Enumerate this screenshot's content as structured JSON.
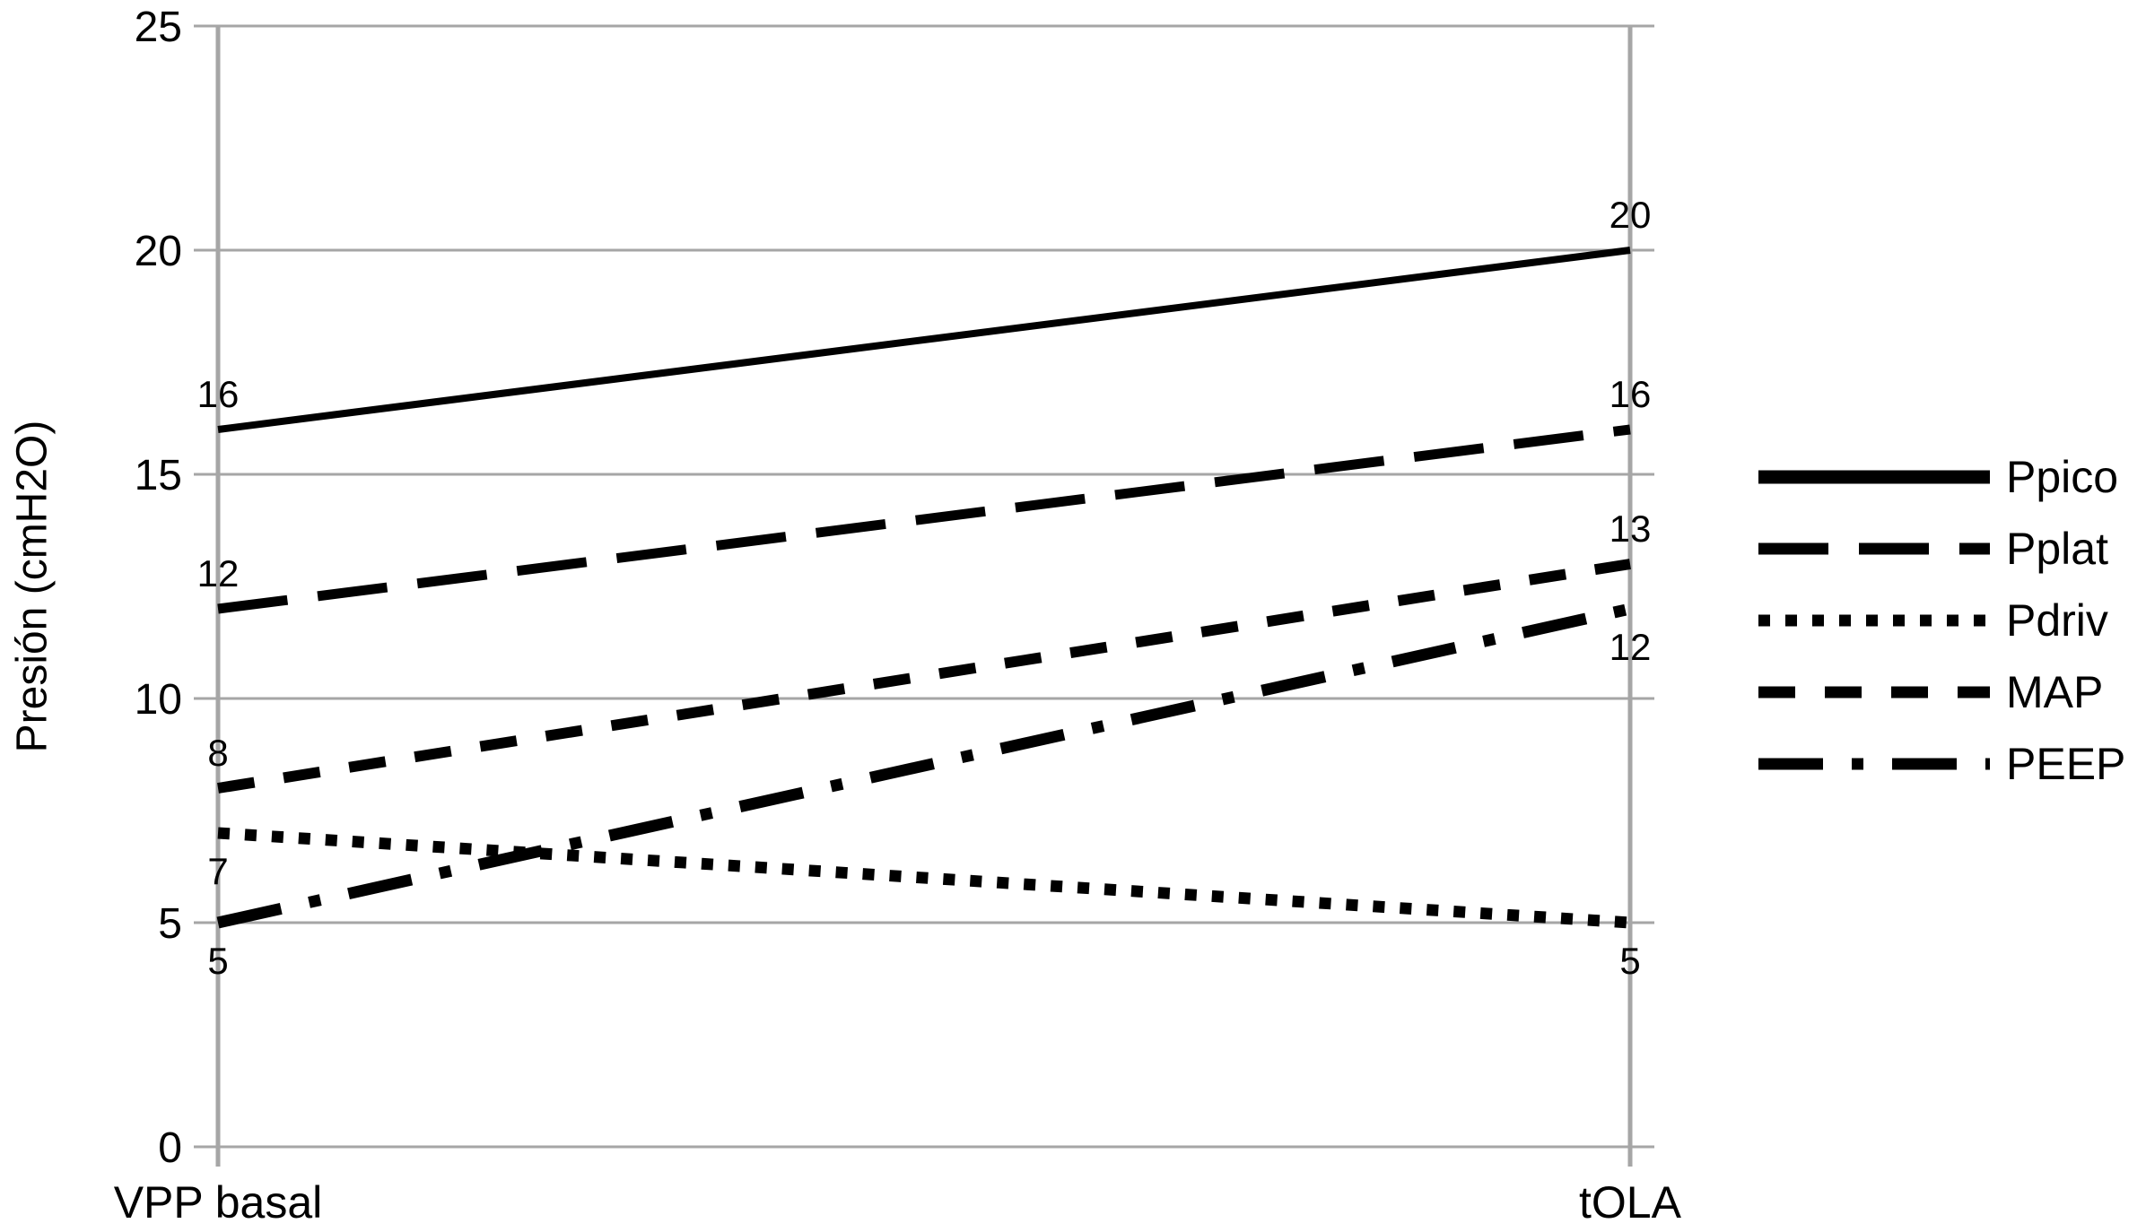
{
  "chart_data": {
    "type": "line",
    "title": "",
    "ylabel": "Presión (cmH2O)",
    "xlabel": "",
    "categories": [
      "VPP basal",
      "tOLA"
    ],
    "ylim": [
      0,
      25
    ],
    "yticks": [
      0,
      5,
      10,
      15,
      20,
      25
    ],
    "grid": "horizontal",
    "legend_position": "right-middle",
    "line_color": "#000000",
    "grid_color": "#a6a6a6",
    "text_color": "#000000",
    "background_color": "#ffffff",
    "series": [
      {
        "name": "Ppico",
        "style": "solid",
        "values": [
          16,
          20
        ],
        "labels": [
          "16",
          "20"
        ],
        "label_side": "above"
      },
      {
        "name": "Pplat",
        "style": "long-dash",
        "values": [
          12,
          16
        ],
        "labels": [
          "12",
          "16"
        ],
        "label_side": "above"
      },
      {
        "name": "Pdriv",
        "style": "dotted",
        "values": [
          7,
          5
        ],
        "labels": [
          "7",
          "5"
        ],
        "label_side": "below"
      },
      {
        "name": "MAP",
        "style": "dash",
        "values": [
          8,
          13
        ],
        "labels": [
          "8",
          "13"
        ],
        "label_side": "above"
      },
      {
        "name": "PEEP",
        "style": "dash-dot",
        "values": [
          5,
          12
        ],
        "labels": [
          "5",
          "12"
        ],
        "label_side": "below"
      }
    ]
  }
}
